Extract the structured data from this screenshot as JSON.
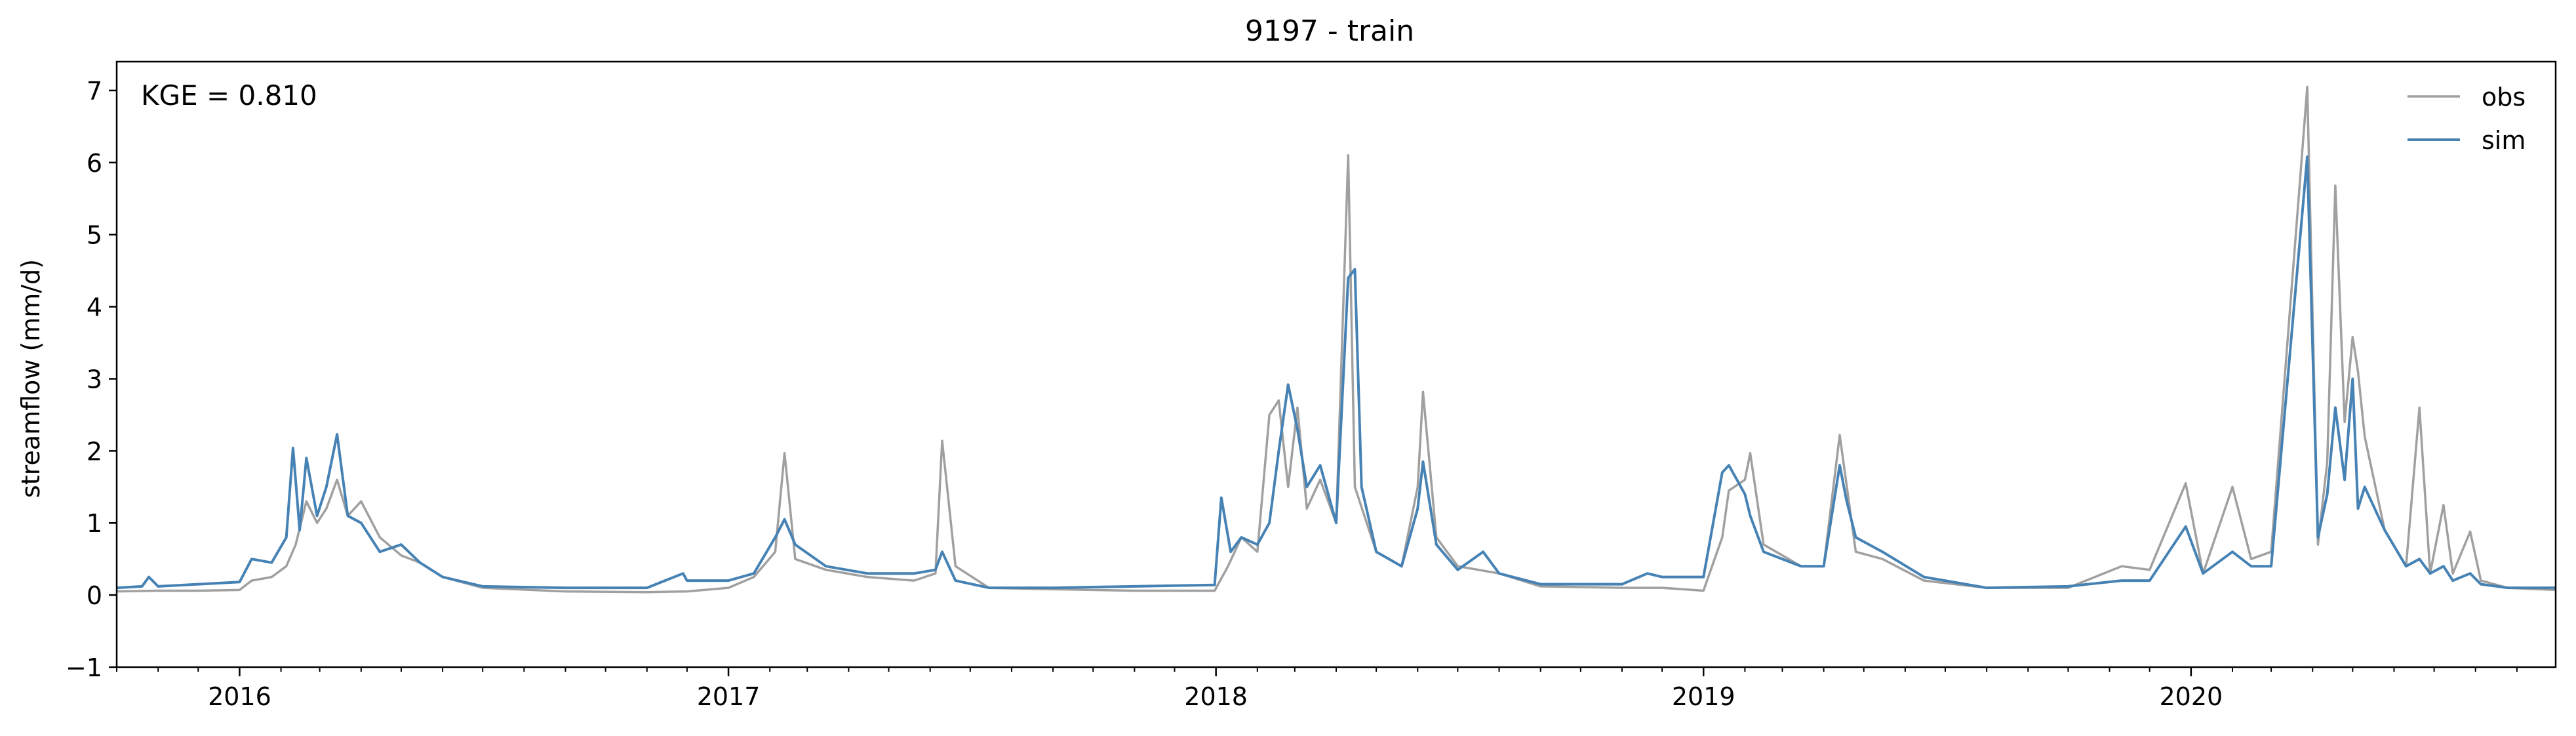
{
  "chart_data": {
    "type": "line",
    "title": "9197 - train",
    "xlabel": "",
    "ylabel": "streamflow (mm/d)",
    "annotation": "KGE = 0.810",
    "xlim": [
      "2015-10-01",
      "2020-09-30"
    ],
    "ylim": [
      -1,
      7.4
    ],
    "yticks": [
      -1,
      0,
      1,
      2,
      3,
      4,
      5,
      6,
      7
    ],
    "ytick_labels": [
      "−1",
      "0",
      "1",
      "2",
      "3",
      "4",
      "5",
      "6",
      "7"
    ],
    "xticks": [
      "2016-01-01",
      "2017-01-01",
      "2018-01-01",
      "2019-01-01",
      "2020-01-01"
    ],
    "xtick_labels": [
      "2016",
      "2017",
      "2018",
      "2019",
      "2020"
    ],
    "grid": false,
    "legend_position": "top-right",
    "series": [
      {
        "name": "obs",
        "color": "#a0a0a0",
        "points": [
          [
            "2015-10-01",
            0.05
          ],
          [
            "2015-11-01",
            0.06
          ],
          [
            "2015-12-01",
            0.06
          ],
          [
            "2016-01-01",
            0.07
          ],
          [
            "2016-01-10",
            0.2
          ],
          [
            "2016-01-25",
            0.25
          ],
          [
            "2016-02-05",
            0.4
          ],
          [
            "2016-02-12",
            0.7
          ],
          [
            "2016-02-20",
            1.3
          ],
          [
            "2016-02-28",
            1.0
          ],
          [
            "2016-03-06",
            1.2
          ],
          [
            "2016-03-14",
            1.6
          ],
          [
            "2016-03-22",
            1.1
          ],
          [
            "2016-04-01",
            1.3
          ],
          [
            "2016-04-15",
            0.8
          ],
          [
            "2016-05-01",
            0.55
          ],
          [
            "2016-05-15",
            0.45
          ],
          [
            "2016-06-01",
            0.25
          ],
          [
            "2016-07-01",
            0.1
          ],
          [
            "2016-09-01",
            0.05
          ],
          [
            "2016-11-01",
            0.04
          ],
          [
            "2016-12-01",
            0.05
          ],
          [
            "2017-01-01",
            0.1
          ],
          [
            "2017-01-20",
            0.25
          ],
          [
            "2017-02-05",
            0.6
          ],
          [
            "2017-02-12",
            1.97
          ],
          [
            "2017-02-20",
            0.5
          ],
          [
            "2017-03-15",
            0.35
          ],
          [
            "2017-04-15",
            0.25
          ],
          [
            "2017-05-20",
            0.2
          ],
          [
            "2017-06-05",
            0.3
          ],
          [
            "2017-06-10",
            2.14
          ],
          [
            "2017-06-20",
            0.4
          ],
          [
            "2017-07-15",
            0.1
          ],
          [
            "2017-09-01",
            0.08
          ],
          [
            "2017-11-01",
            0.06
          ],
          [
            "2017-12-31",
            0.06
          ],
          [
            "2018-01-10",
            0.4
          ],
          [
            "2018-01-20",
            0.8
          ],
          [
            "2018-02-01",
            0.6
          ],
          [
            "2018-02-10",
            2.5
          ],
          [
            "2018-02-17",
            2.7
          ],
          [
            "2018-02-24",
            1.5
          ],
          [
            "2018-03-03",
            2.6
          ],
          [
            "2018-03-10",
            1.2
          ],
          [
            "2018-03-20",
            1.6
          ],
          [
            "2018-04-01",
            1.0
          ],
          [
            "2018-04-10",
            6.1
          ],
          [
            "2018-04-15",
            1.5
          ],
          [
            "2018-05-01",
            0.6
          ],
          [
            "2018-05-20",
            0.4
          ],
          [
            "2018-06-01",
            1.5
          ],
          [
            "2018-06-05",
            2.82
          ],
          [
            "2018-06-15",
            0.8
          ],
          [
            "2018-07-01",
            0.4
          ],
          [
            "2018-08-01",
            0.3
          ],
          [
            "2018-09-01",
            0.12
          ],
          [
            "2018-11-01",
            0.1
          ],
          [
            "2018-12-01",
            0.1
          ],
          [
            "2019-01-01",
            0.06
          ],
          [
            "2019-01-15",
            0.8
          ],
          [
            "2019-01-20",
            1.45
          ],
          [
            "2019-02-01",
            1.6
          ],
          [
            "2019-02-05",
            1.97
          ],
          [
            "2019-02-15",
            0.7
          ],
          [
            "2019-03-15",
            0.4
          ],
          [
            "2019-04-01",
            0.4
          ],
          [
            "2019-04-13",
            2.22
          ],
          [
            "2019-04-25",
            0.6
          ],
          [
            "2019-05-15",
            0.5
          ],
          [
            "2019-06-15",
            0.2
          ],
          [
            "2019-08-01",
            0.1
          ],
          [
            "2019-10-01",
            0.1
          ],
          [
            "2019-11-10",
            0.4
          ],
          [
            "2019-12-01",
            0.35
          ],
          [
            "2019-12-28",
            1.55
          ],
          [
            "2020-01-10",
            0.3
          ],
          [
            "2020-02-01",
            1.5
          ],
          [
            "2020-02-15",
            0.5
          ],
          [
            "2020-03-01",
            0.6
          ],
          [
            "2020-03-28",
            7.05
          ],
          [
            "2020-04-05",
            0.7
          ],
          [
            "2020-04-12",
            1.85
          ],
          [
            "2020-04-18",
            5.68
          ],
          [
            "2020-04-25",
            2.4
          ],
          [
            "2020-05-01",
            3.58
          ],
          [
            "2020-05-05",
            3.1
          ],
          [
            "2020-05-10",
            2.2
          ],
          [
            "2020-05-25",
            0.9
          ],
          [
            "2020-06-10",
            0.4
          ],
          [
            "2020-06-20",
            2.6
          ],
          [
            "2020-06-28",
            0.3
          ],
          [
            "2020-07-08",
            1.25
          ],
          [
            "2020-07-15",
            0.3
          ],
          [
            "2020-07-28",
            0.88
          ],
          [
            "2020-08-05",
            0.2
          ],
          [
            "2020-08-25",
            0.1
          ],
          [
            "2020-09-30",
            0.07
          ]
        ]
      },
      {
        "name": "sim",
        "color": "#4682b4",
        "points": [
          [
            "2015-10-01",
            0.1
          ],
          [
            "2015-10-20",
            0.12
          ],
          [
            "2015-10-25",
            0.25
          ],
          [
            "2015-11-01",
            0.12
          ],
          [
            "2015-12-01",
            0.15
          ],
          [
            "2016-01-01",
            0.18
          ],
          [
            "2016-01-10",
            0.5
          ],
          [
            "2016-01-25",
            0.45
          ],
          [
            "2016-02-05",
            0.8
          ],
          [
            "2016-02-10",
            2.04
          ],
          [
            "2016-02-15",
            0.9
          ],
          [
            "2016-02-20",
            1.9
          ],
          [
            "2016-02-28",
            1.1
          ],
          [
            "2016-03-06",
            1.5
          ],
          [
            "2016-03-14",
            2.23
          ],
          [
            "2016-03-22",
            1.1
          ],
          [
            "2016-04-01",
            1.0
          ],
          [
            "2016-04-15",
            0.6
          ],
          [
            "2016-05-01",
            0.7
          ],
          [
            "2016-05-15",
            0.45
          ],
          [
            "2016-06-01",
            0.25
          ],
          [
            "2016-07-01",
            0.12
          ],
          [
            "2016-09-01",
            0.1
          ],
          [
            "2016-11-01",
            0.1
          ],
          [
            "2016-11-28",
            0.3
          ],
          [
            "2016-12-01",
            0.2
          ],
          [
            "2017-01-01",
            0.2
          ],
          [
            "2017-01-20",
            0.3
          ],
          [
            "2017-02-05",
            0.8
          ],
          [
            "2017-02-12",
            1.05
          ],
          [
            "2017-02-20",
            0.7
          ],
          [
            "2017-03-15",
            0.4
          ],
          [
            "2017-04-15",
            0.3
          ],
          [
            "2017-05-20",
            0.3
          ],
          [
            "2017-06-05",
            0.35
          ],
          [
            "2017-06-10",
            0.6
          ],
          [
            "2017-06-20",
            0.2
          ],
          [
            "2017-07-15",
            0.1
          ],
          [
            "2017-09-01",
            0.1
          ],
          [
            "2017-11-01",
            0.12
          ],
          [
            "2017-12-31",
            0.14
          ],
          [
            "2018-01-05",
            1.35
          ],
          [
            "2018-01-12",
            0.6
          ],
          [
            "2018-01-20",
            0.8
          ],
          [
            "2018-02-01",
            0.7
          ],
          [
            "2018-02-10",
            1.0
          ],
          [
            "2018-02-17",
            2.0
          ],
          [
            "2018-02-24",
            2.92
          ],
          [
            "2018-03-03",
            2.3
          ],
          [
            "2018-03-10",
            1.5
          ],
          [
            "2018-03-20",
            1.8
          ],
          [
            "2018-04-01",
            1.0
          ],
          [
            "2018-04-10",
            4.4
          ],
          [
            "2018-04-15",
            4.52
          ],
          [
            "2018-04-20",
            1.5
          ],
          [
            "2018-05-01",
            0.6
          ],
          [
            "2018-05-20",
            0.4
          ],
          [
            "2018-06-01",
            1.2
          ],
          [
            "2018-06-05",
            1.85
          ],
          [
            "2018-06-15",
            0.7
          ],
          [
            "2018-07-01",
            0.35
          ],
          [
            "2018-07-20",
            0.6
          ],
          [
            "2018-08-01",
            0.3
          ],
          [
            "2018-09-01",
            0.15
          ],
          [
            "2018-11-01",
            0.15
          ],
          [
            "2018-11-20",
            0.3
          ],
          [
            "2018-12-01",
            0.25
          ],
          [
            "2019-01-01",
            0.25
          ],
          [
            "2019-01-15",
            1.7
          ],
          [
            "2019-01-20",
            1.8
          ],
          [
            "2019-02-01",
            1.4
          ],
          [
            "2019-02-05",
            1.1
          ],
          [
            "2019-02-15",
            0.6
          ],
          [
            "2019-03-15",
            0.4
          ],
          [
            "2019-04-01",
            0.4
          ],
          [
            "2019-04-13",
            1.8
          ],
          [
            "2019-04-18",
            1.32
          ],
          [
            "2019-04-25",
            0.8
          ],
          [
            "2019-05-15",
            0.6
          ],
          [
            "2019-06-15",
            0.25
          ],
          [
            "2019-08-01",
            0.1
          ],
          [
            "2019-10-01",
            0.12
          ],
          [
            "2019-11-10",
            0.2
          ],
          [
            "2019-12-01",
            0.2
          ],
          [
            "2019-12-28",
            0.95
          ],
          [
            "2020-01-10",
            0.3
          ],
          [
            "2020-02-01",
            0.6
          ],
          [
            "2020-02-15",
            0.4
          ],
          [
            "2020-03-01",
            0.4
          ],
          [
            "2020-03-28",
            6.08
          ],
          [
            "2020-04-05",
            0.8
          ],
          [
            "2020-04-12",
            1.4
          ],
          [
            "2020-04-18",
            2.6
          ],
          [
            "2020-04-25",
            1.6
          ],
          [
            "2020-05-01",
            3.0
          ],
          [
            "2020-05-05",
            1.2
          ],
          [
            "2020-05-10",
            1.5
          ],
          [
            "2020-05-25",
            0.9
          ],
          [
            "2020-06-10",
            0.4
          ],
          [
            "2020-06-20",
            0.5
          ],
          [
            "2020-06-28",
            0.3
          ],
          [
            "2020-07-08",
            0.4
          ],
          [
            "2020-07-15",
            0.2
          ],
          [
            "2020-07-28",
            0.3
          ],
          [
            "2020-08-05",
            0.15
          ],
          [
            "2020-08-25",
            0.1
          ],
          [
            "2020-09-30",
            0.1
          ]
        ]
      }
    ]
  }
}
